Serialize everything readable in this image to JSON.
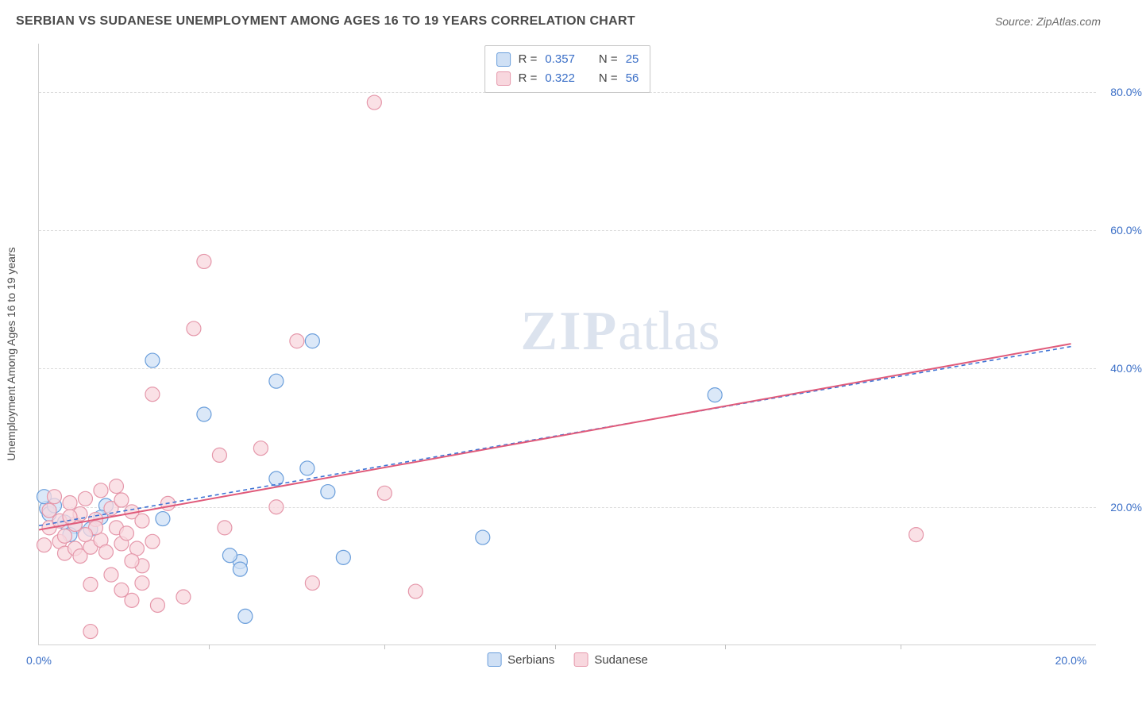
{
  "title": "SERBIAN VS SUDANESE UNEMPLOYMENT AMONG AGES 16 TO 19 YEARS CORRELATION CHART",
  "source_label": "Source: ZipAtlas.com",
  "y_axis_label": "Unemployment Among Ages 16 to 19 years",
  "watermark": {
    "part1": "ZIP",
    "part2": "atlas"
  },
  "chart": {
    "type": "scatter",
    "background_color": "#ffffff",
    "grid_color": "#dcdcdc",
    "axis_color": "#d0d0d0",
    "tick_label_color": "#3b6fc7",
    "tick_label_fontsize": 14,
    "marker_radius": 9,
    "marker_stroke_width": 1.2,
    "xlim": [
      0.0,
      20.5
    ],
    "ylim": [
      0.0,
      87.0
    ],
    "x_ticks": [
      0.0,
      20.0
    ],
    "x_tick_labels": [
      "0.0%",
      "20.0%"
    ],
    "x_minor_ticks": [
      3.3,
      6.7,
      10.0,
      13.3,
      16.7
    ],
    "y_gridlines": [
      20.0,
      40.0,
      60.0,
      80.0
    ],
    "y_tick_labels": [
      "20.0%",
      "40.0%",
      "60.0%",
      "80.0%"
    ],
    "legend_top": [
      {
        "swatch_fill": "#cfe0f5",
        "swatch_stroke": "#6a9edb",
        "r_label": "R =",
        "r_value": "0.357",
        "n_label": "N =",
        "n_value": "25"
      },
      {
        "swatch_fill": "#f8d7de",
        "swatch_stroke": "#e597aa",
        "r_label": "R =",
        "r_value": "0.322",
        "n_label": "N =",
        "n_value": "56"
      }
    ],
    "legend_bottom": [
      {
        "swatch_fill": "#cfe0f5",
        "swatch_stroke": "#6a9edb",
        "label": "Serbians"
      },
      {
        "swatch_fill": "#f8d7de",
        "swatch_stroke": "#e597aa",
        "label": "Sudanese"
      }
    ],
    "series": [
      {
        "name": "Serbians",
        "marker_fill": "#cfe0f5",
        "marker_stroke": "#6a9edb",
        "trend_color": "#3f73d4",
        "trend_dash": "5,4",
        "trend_width": 1.6,
        "trend": {
          "x1": 0.0,
          "y1": 17.3,
          "x2": 20.0,
          "y2": 43.2
        },
        "points": [
          [
            0.15,
            19.8
          ],
          [
            0.1,
            21.5
          ],
          [
            0.2,
            19.0
          ],
          [
            0.5,
            17.8
          ],
          [
            0.7,
            17.2
          ],
          [
            0.3,
            20.2
          ],
          [
            1.0,
            16.8
          ],
          [
            1.3,
            20.2
          ],
          [
            2.2,
            41.2
          ],
          [
            2.4,
            18.3
          ],
          [
            3.2,
            33.4
          ],
          [
            3.9,
            12.1
          ],
          [
            3.9,
            11.0
          ],
          [
            4.6,
            24.1
          ],
          [
            4.6,
            38.2
          ],
          [
            5.2,
            25.6
          ],
          [
            5.3,
            44.0
          ],
          [
            5.6,
            22.2
          ],
          [
            5.9,
            12.7
          ],
          [
            4.0,
            4.2
          ],
          [
            3.7,
            13.0
          ],
          [
            8.6,
            15.6
          ],
          [
            13.1,
            36.2
          ],
          [
            0.6,
            16.0
          ],
          [
            1.2,
            18.5
          ]
        ]
      },
      {
        "name": "Sudanese",
        "marker_fill": "#f8d7de",
        "marker_stroke": "#e597aa",
        "trend_color": "#e05a7a",
        "trend_dash": "none",
        "trend_width": 2.0,
        "trend": {
          "x1": 0.0,
          "y1": 16.7,
          "x2": 20.0,
          "y2": 43.6
        },
        "points": [
          [
            0.1,
            14.5
          ],
          [
            0.2,
            17.0
          ],
          [
            0.2,
            19.5
          ],
          [
            0.3,
            21.5
          ],
          [
            0.4,
            15.0
          ],
          [
            0.4,
            18.0
          ],
          [
            0.5,
            13.3
          ],
          [
            0.5,
            15.8
          ],
          [
            0.6,
            20.6
          ],
          [
            0.7,
            14.0
          ],
          [
            0.7,
            17.5
          ],
          [
            0.8,
            12.9
          ],
          [
            0.8,
            19.0
          ],
          [
            0.9,
            21.2
          ],
          [
            1.0,
            14.2
          ],
          [
            1.0,
            2.0
          ],
          [
            1.0,
            8.8
          ],
          [
            1.1,
            18.2
          ],
          [
            1.2,
            15.2
          ],
          [
            1.2,
            22.4
          ],
          [
            1.3,
            13.5
          ],
          [
            1.4,
            19.8
          ],
          [
            1.4,
            10.2
          ],
          [
            1.5,
            17.0
          ],
          [
            1.5,
            23.0
          ],
          [
            1.6,
            8.0
          ],
          [
            1.6,
            14.7
          ],
          [
            1.6,
            21.0
          ],
          [
            1.7,
            16.2
          ],
          [
            1.8,
            19.3
          ],
          [
            1.8,
            6.5
          ],
          [
            1.9,
            14.0
          ],
          [
            2.0,
            11.5
          ],
          [
            2.0,
            18.0
          ],
          [
            2.0,
            9.0
          ],
          [
            2.2,
            15.0
          ],
          [
            2.2,
            36.3
          ],
          [
            2.3,
            5.8
          ],
          [
            2.5,
            20.5
          ],
          [
            2.8,
            7.0
          ],
          [
            1.8,
            12.2
          ],
          [
            3.0,
            45.8
          ],
          [
            3.2,
            55.5
          ],
          [
            3.5,
            27.5
          ],
          [
            3.6,
            17.0
          ],
          [
            4.6,
            20.0
          ],
          [
            4.3,
            28.5
          ],
          [
            5.0,
            44.0
          ],
          [
            5.3,
            9.0
          ],
          [
            6.5,
            78.5
          ],
          [
            6.7,
            22.0
          ],
          [
            7.3,
            7.8
          ],
          [
            1.1,
            17.0
          ],
          [
            0.9,
            16.0
          ],
          [
            0.6,
            18.6
          ],
          [
            17.0,
            16.0
          ]
        ]
      }
    ]
  }
}
